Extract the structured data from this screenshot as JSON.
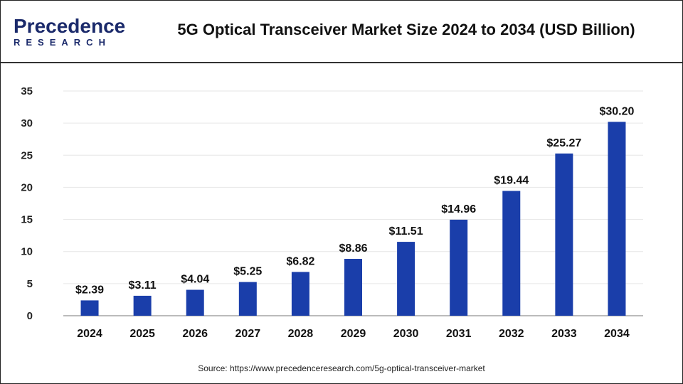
{
  "logo": {
    "line1": "Precedence",
    "line2": "RESEARCH"
  },
  "source": "Source: https://www.precedenceresearch.com/5g-optical-transceiver-market",
  "colors": {
    "bar": "#1a3eaa",
    "grid": "#e6e6e6",
    "axis": "#bbbbbb"
  },
  "chart_data": {
    "type": "bar",
    "title": "5G Optical Transceiver Market Size 2024 to 2034 (USD Billion)",
    "categories": [
      "2024",
      "2025",
      "2026",
      "2027",
      "2028",
      "2029",
      "2030",
      "2031",
      "2032",
      "2033",
      "2034"
    ],
    "values": [
      2.39,
      3.11,
      4.04,
      5.25,
      6.82,
      8.86,
      11.51,
      14.96,
      19.44,
      25.27,
      30.2
    ],
    "data_labels": [
      "$2.39",
      "$3.11",
      "$4.04",
      "$5.25",
      "$6.82",
      "$8.86",
      "$11.51",
      "$14.96",
      "$19.44",
      "$25.27",
      "$30.20"
    ],
    "yticks": [
      0,
      5,
      10,
      15,
      20,
      25,
      30,
      35
    ],
    "ylim": [
      0,
      35
    ],
    "grid": true,
    "xlabel": "",
    "ylabel": ""
  }
}
